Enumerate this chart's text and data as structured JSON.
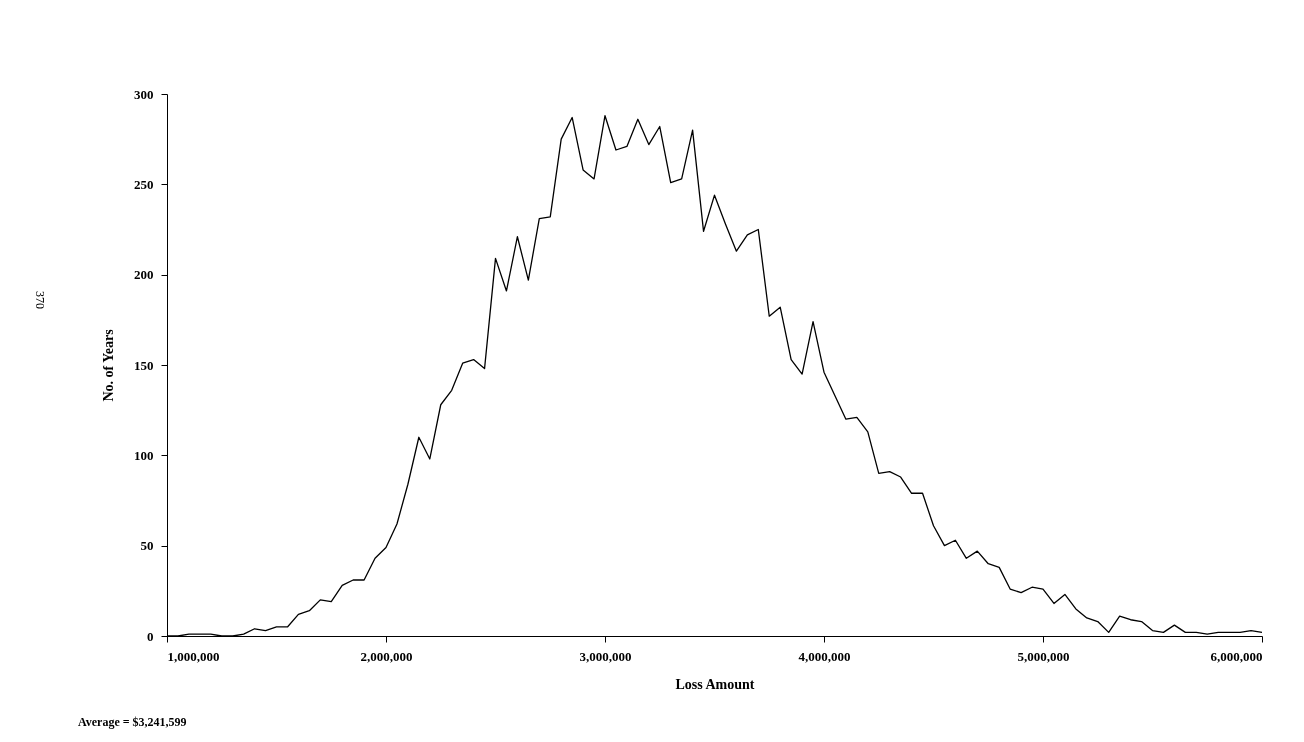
{
  "chart_data": {
    "type": "line",
    "xlabel": "Loss Amount",
    "ylabel": "No. of Years",
    "annotations": [
      "Average = $3,241,599",
      "370"
    ],
    "x": [
      1000000,
      1050000,
      1100000,
      1150000,
      1200000,
      1250000,
      1300000,
      1350000,
      1400000,
      1450000,
      1500000,
      1550000,
      1600000,
      1650000,
      1700000,
      1750000,
      1800000,
      1850000,
      1900000,
      1950000,
      2000000,
      2050000,
      2100000,
      2150000,
      2200000,
      2250000,
      2300000,
      2350000,
      2400000,
      2450000,
      2500000,
      2550000,
      2600000,
      2650000,
      2700000,
      2750000,
      2800000,
      2850000,
      2900000,
      2950000,
      3000000,
      3050000,
      3100000,
      3150000,
      3200000,
      3250000,
      3300000,
      3350000,
      3400000,
      3450000,
      3500000,
      3550000,
      3600000,
      3650000,
      3700000,
      3750000,
      3800000,
      3850000,
      3900000,
      3950000,
      4000000,
      4050000,
      4100000,
      4150000,
      4200000,
      4250000,
      4300000,
      4350000,
      4400000,
      4450000,
      4500000,
      4550000,
      4600000,
      4650000,
      4700000,
      4750000,
      4800000,
      4850000,
      4900000,
      4950000,
      5000000,
      5050000,
      5100000,
      5150000,
      5200000,
      5250000,
      5300000,
      5350000,
      5400000,
      5450000,
      5500000,
      5550000,
      5600000,
      5650000,
      5700000,
      5750000,
      5800000,
      5850000,
      5900000,
      5950000,
      6000000
    ],
    "series": [
      {
        "color": "#000000",
        "values": [
          0,
          0,
          1,
          1,
          1,
          0,
          0,
          1,
          4,
          3,
          5,
          5,
          12,
          14,
          20,
          19,
          28,
          31,
          31,
          43,
          49,
          62,
          84,
          110,
          98,
          128,
          136,
          151,
          153,
          148,
          209,
          191,
          221,
          197,
          231,
          232,
          275,
          287,
          258,
          253,
          288,
          269,
          271,
          286,
          272,
          282,
          251,
          253,
          280,
          224,
          244,
          228,
          213,
          222,
          225,
          177,
          182,
          153,
          145,
          174,
          146,
          133,
          120,
          121,
          113,
          90,
          91,
          88,
          79,
          79,
          61,
          50,
          53,
          43,
          47,
          40,
          38,
          26,
          24,
          27,
          26,
          18,
          23,
          15,
          10,
          8,
          2,
          11,
          9,
          8,
          3,
          2,
          6,
          2,
          2,
          1,
          2,
          2,
          2,
          3,
          2
        ]
      }
    ],
    "xlim": [
      1000000,
      6000000
    ],
    "xticks": [
      {
        "value": 1000000,
        "label": "1,000,000"
      },
      {
        "value": 2000000,
        "label": "2,000,000"
      },
      {
        "value": 3000000,
        "label": "3,000,000"
      },
      {
        "value": 4000000,
        "label": "4,000,000"
      },
      {
        "value": 5000000,
        "label": "5,000,000"
      },
      {
        "value": 6000000,
        "label": "6,000,000"
      }
    ],
    "ylim": [
      0,
      300
    ],
    "yticks": [
      0,
      50,
      100,
      150,
      200,
      250,
      300
    ],
    "grid": false,
    "marker": "none",
    "line_style": "solid"
  }
}
